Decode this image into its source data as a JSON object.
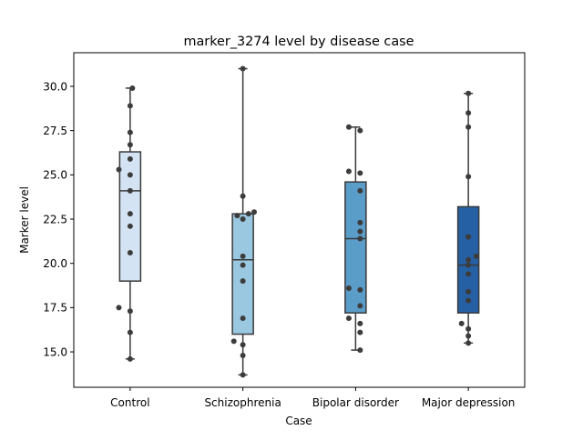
{
  "chart_data": {
    "type": "box",
    "title": "marker_3274 level by disease case",
    "xlabel": "Case",
    "ylabel": "Marker level",
    "ylim": [
      13.0,
      31.9
    ],
    "yticks": [
      15.0,
      17.5,
      20.0,
      22.5,
      25.0,
      27.5,
      30.0
    ],
    "ytick_labels": [
      "15.0",
      "17.5",
      "20.0",
      "22.5",
      "25.0",
      "27.5",
      "30.0"
    ],
    "categories": [
      "Control",
      "Schizophrenia",
      "Bipolar disorder",
      "Major depression"
    ],
    "colors": [
      "#d4e3f3",
      "#9ac8e0",
      "#5a9dc9",
      "#2660a4"
    ],
    "boxes": [
      {
        "q1": 19.0,
        "median": 24.1,
        "q3": 26.3,
        "whisker_low": 14.6,
        "whisker_high": 29.9
      },
      {
        "q1": 16.0,
        "median": 20.2,
        "q3": 22.8,
        "whisker_low": 13.7,
        "whisker_high": 31.0
      },
      {
        "q1": 17.2,
        "median": 21.4,
        "q3": 24.6,
        "whisker_low": 15.1,
        "whisker_high": 27.7
      },
      {
        "q1": 17.2,
        "median": 19.9,
        "q3": 23.2,
        "whisker_low": 15.5,
        "whisker_high": 29.6
      }
    ],
    "points": [
      [
        [
          0.02,
          29.9
        ],
        [
          0.0,
          28.9
        ],
        [
          0.0,
          27.4
        ],
        [
          0.0,
          26.7
        ],
        [
          0.0,
          25.9
        ],
        [
          -0.1,
          25.3
        ],
        [
          0.0,
          25.0
        ],
        [
          0.0,
          24.1
        ],
        [
          0.0,
          22.8
        ],
        [
          0.0,
          22.1
        ],
        [
          0.0,
          20.6
        ],
        [
          -0.1,
          17.5
        ],
        [
          0.0,
          17.3
        ],
        [
          0.0,
          16.1
        ],
        [
          0.0,
          14.6
        ]
      ],
      [
        [
          0.0,
          31.0
        ],
        [
          0.0,
          23.8
        ],
        [
          -0.05,
          22.7
        ],
        [
          0.05,
          22.8
        ],
        [
          0.1,
          22.9
        ],
        [
          0.0,
          22.5
        ],
        [
          0.0,
          20.4
        ],
        [
          0.0,
          19.9
        ],
        [
          0.0,
          19.0
        ],
        [
          0.0,
          16.9
        ],
        [
          -0.08,
          15.6
        ],
        [
          0.0,
          15.4
        ],
        [
          0.0,
          14.8
        ],
        [
          0.0,
          13.7
        ]
      ],
      [
        [
          -0.06,
          27.7
        ],
        [
          0.04,
          27.5
        ],
        [
          -0.06,
          25.2
        ],
        [
          0.04,
          25.1
        ],
        [
          0.04,
          24.1
        ],
        [
          0.04,
          22.3
        ],
        [
          0.04,
          21.8
        ],
        [
          0.04,
          21.4
        ],
        [
          -0.06,
          18.6
        ],
        [
          0.04,
          18.5
        ],
        [
          0.04,
          17.6
        ],
        [
          -0.06,
          16.9
        ],
        [
          0.04,
          16.6
        ],
        [
          0.04,
          16.1
        ],
        [
          0.04,
          15.1
        ]
      ],
      [
        [
          0.0,
          29.6
        ],
        [
          0.0,
          28.5
        ],
        [
          0.0,
          27.7
        ],
        [
          0.0,
          24.9
        ],
        [
          0.0,
          21.5
        ],
        [
          0.07,
          20.4
        ],
        [
          0.0,
          20.2
        ],
        [
          0.0,
          19.9
        ],
        [
          0.0,
          19.4
        ],
        [
          0.0,
          18.4
        ],
        [
          0.0,
          17.9
        ],
        [
          -0.06,
          16.6
        ],
        [
          0.0,
          16.3
        ],
        [
          0.0,
          15.9
        ],
        [
          0.0,
          15.5
        ]
      ]
    ]
  }
}
